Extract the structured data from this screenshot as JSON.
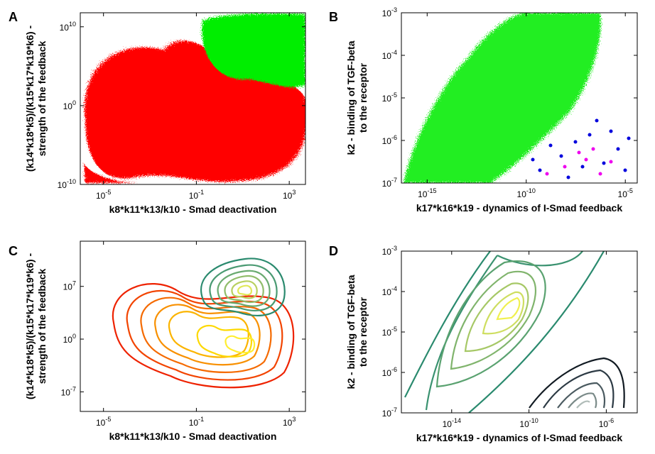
{
  "chart_data": [
    {
      "type": "scatter",
      "label": "A",
      "xlabel": "k8*k11*k13/k10 - Smad deactivation",
      "ylabel": [
        "(k14*k18*k5)/(k15*k17*k19*k6) -",
        "strength of the feedback"
      ],
      "log_x": true,
      "log_y": true,
      "xlim": [
        1e-06,
        5000
      ],
      "ylim": [
        1e-10,
        600000000000.0
      ],
      "xticks": [
        {
          "value": 1e-05,
          "label": "10^-5"
        },
        {
          "value": 0.1,
          "label": "10^-1"
        },
        {
          "value": 1000,
          "label": "10^3"
        }
      ],
      "yticks": [
        {
          "value": 1e-10,
          "label": "10^-10"
        },
        {
          "value": 1,
          "label": "10^0"
        },
        {
          "value": 10000000000.0,
          "label": "10^10"
        }
      ]
    },
    {
      "type": "scatter",
      "label": "B",
      "xlabel": "k17*k16*k19 - dynamics of I-Smad feedback",
      "ylabel": [
        "k2 - binding of TGF-beta",
        "to the receptor"
      ],
      "log_x": true,
      "log_y": true,
      "xlim": [
        5e-17,
        4e-05
      ],
      "ylim": [
        1e-07,
        0.001
      ],
      "xticks": [
        {
          "value": 1e-15,
          "label": "10^-15"
        },
        {
          "value": 1e-10,
          "label": "10^-10"
        },
        {
          "value": 1e-05,
          "label": "10^-5"
        }
      ],
      "yticks": [
        {
          "value": 1e-07,
          "label": "10^-7"
        },
        {
          "value": 1e-06,
          "label": "10^-6"
        },
        {
          "value": 1e-05,
          "label": "10^-5"
        },
        {
          "value": 0.0001,
          "label": "10^-4"
        },
        {
          "value": 0.001,
          "label": "10^-3"
        }
      ]
    },
    {
      "type": "contour",
      "label": "C",
      "xlabel": "k8*k11*k13/k10 - Smad deactivation",
      "ylabel": [
        "(k14*k18*k5)/(k15*k17*k19*k6) -",
        "strength of the feedback"
      ],
      "log_x": true,
      "log_y": true,
      "xlim": [
        1e-06,
        5000
      ],
      "ylim": [
        2.5e-10,
        10000000000000.0
      ],
      "xticks": [
        {
          "value": 1e-05,
          "label": "10^-5"
        },
        {
          "value": 0.1,
          "label": "10^-1"
        },
        {
          "value": 1000,
          "label": "10^3"
        }
      ],
      "yticks": [
        {
          "value": 1e-07,
          "label": "10^-7"
        },
        {
          "value": 1,
          "label": "10^0"
        },
        {
          "value": 10000000.0,
          "label": "10^7"
        }
      ]
    },
    {
      "type": "contour",
      "label": "D",
      "xlabel": "k17*k16*k19 - dynamics of I-Smad feedback",
      "ylabel": [
        "k2 - binding of TGF-beta",
        "to the receptor"
      ],
      "log_x": true,
      "log_y": true,
      "xlim": [
        2.5e-17,
        4e-05
      ],
      "ylim": [
        1e-07,
        0.001
      ],
      "xticks": [
        {
          "value": 1e-14,
          "label": "10^-14"
        },
        {
          "value": 1e-10,
          "label": "10^-10"
        },
        {
          "value": 1e-06,
          "label": "10^-6"
        }
      ],
      "yticks": [
        {
          "value": 1e-07,
          "label": "10^-7"
        },
        {
          "value": 1e-06,
          "label": "10^-6"
        },
        {
          "value": 1e-05,
          "label": "10^-5"
        },
        {
          "value": 0.0001,
          "label": "10^-4"
        },
        {
          "value": 0.001,
          "label": "10^-3"
        }
      ]
    }
  ]
}
